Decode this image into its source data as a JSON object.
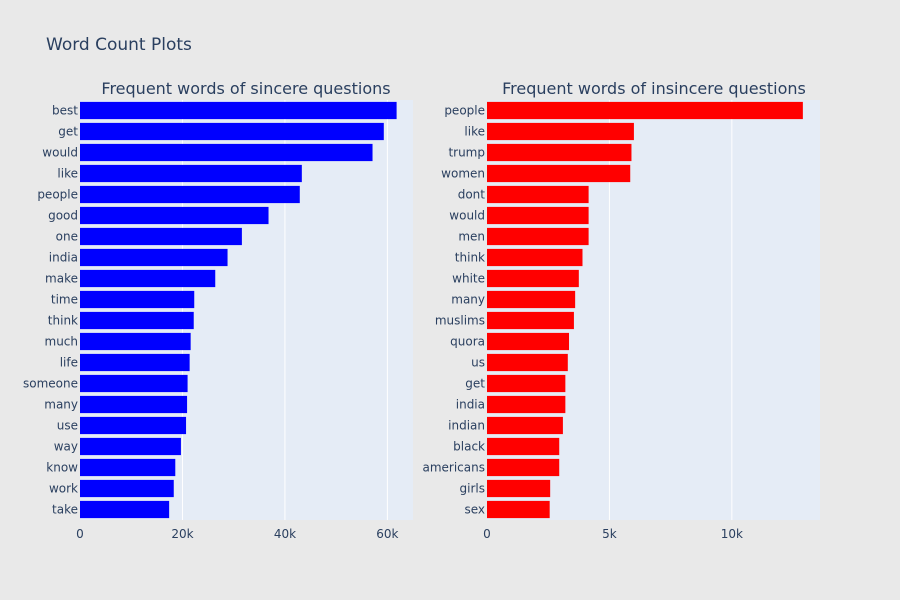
{
  "title": "Word Count Plots",
  "colors": {
    "background": "#e9e9e9",
    "plot_bg": "#e5ecf6",
    "grid": "#ffffff",
    "text": "#2a3f5f"
  },
  "chart_data": [
    {
      "type": "bar",
      "orientation": "horizontal",
      "title": "Frequent words of sincere questions",
      "color": "#0000ff",
      "xlim": [
        0,
        65000
      ],
      "xticks": [
        0,
        20000,
        40000,
        60000
      ],
      "xtick_labels": [
        "0",
        "20k",
        "40k",
        "60k"
      ],
      "categories": [
        "best",
        "get",
        "would",
        "like",
        "people",
        "good",
        "one",
        "india",
        "make",
        "time",
        "think",
        "much",
        "life",
        "someone",
        "many",
        "use",
        "way",
        "know",
        "work",
        "take"
      ],
      "values": [
        61800,
        59300,
        57100,
        43300,
        42900,
        36800,
        31600,
        28800,
        26400,
        22300,
        22200,
        21600,
        21400,
        21000,
        20900,
        20700,
        19700,
        18600,
        18300,
        17400
      ]
    },
    {
      "type": "bar",
      "orientation": "horizontal",
      "title": "Frequent words of insincere questions",
      "color": "#ff0000",
      "xlim": [
        0,
        13600
      ],
      "xticks": [
        0,
        5000,
        10000
      ],
      "xtick_labels": [
        "0",
        "5k",
        "10k"
      ],
      "categories": [
        "people",
        "like",
        "trump",
        "women",
        "dont",
        "would",
        "men",
        "think",
        "white",
        "many",
        "muslims",
        "quora",
        "us",
        "get",
        "india",
        "indian",
        "black",
        "americans",
        "girls",
        "sex"
      ],
      "values": [
        12900,
        6000,
        5900,
        5850,
        4150,
        4150,
        4150,
        3900,
        3750,
        3600,
        3550,
        3350,
        3300,
        3200,
        3200,
        3100,
        2950,
        2950,
        2580,
        2560
      ]
    }
  ]
}
